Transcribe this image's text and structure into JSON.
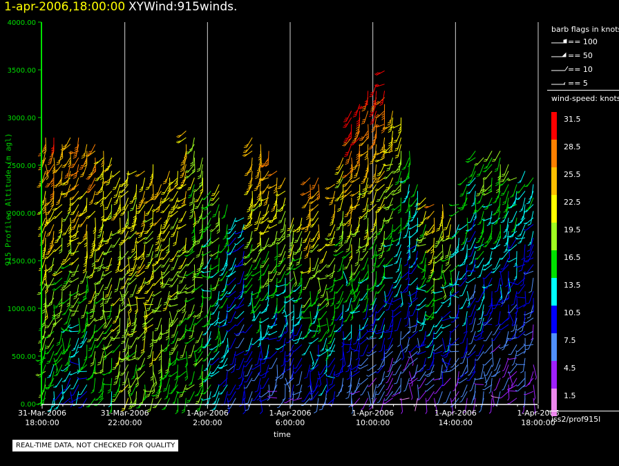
{
  "header": {
    "time": "1-apr-2006,18:00:00",
    "name": "XYWind:915winds."
  },
  "chart_data": {
    "type": "scatter",
    "title": "XYWind:915winds.",
    "xlabel": "time",
    "ylabel": "915 Profiler Altitude (m agl)",
    "ylim": [
      0,
      4000
    ],
    "yticks": [
      "0.00",
      "500.00",
      "1000.00",
      "1500.00",
      "2000.00",
      "2500.00",
      "3000.00",
      "3500.00",
      "4000.00"
    ],
    "xticks": [
      {
        "date": "31-Mar-2006",
        "time": "18:00:00"
      },
      {
        "date": "31-Mar-2006",
        "time": "22:00:00"
      },
      {
        "date": "1-Apr-2006",
        "time": "2:00:00"
      },
      {
        "date": "1-Apr-2006",
        "time": "6:00:00"
      },
      {
        "date": "1-Apr-2006",
        "time": "10:00:00"
      },
      {
        "date": "1-Apr-2006",
        "time": "14:00:00"
      },
      {
        "date": "1-Apr-2006",
        "time": "18:00:00"
      }
    ],
    "xlim_hours": [
      0,
      24
    ],
    "grid": "vertical lines at each time tick",
    "series_note": "Wind barbs per profiler range gate, colored by speed",
    "profiles": [
      {
        "t": 0.2,
        "top": 2800,
        "dir": 200,
        "spd_low": 16,
        "spd_high": 26
      },
      {
        "t": 0.6,
        "top": 2900,
        "dir": 205,
        "spd_low": 14,
        "spd_high": 30
      },
      {
        "t": 1.0,
        "top": 2850,
        "dir": 210,
        "spd_low": 12,
        "spd_high": 28
      },
      {
        "t": 1.4,
        "top": 2800,
        "dir": 215,
        "spd_low": 12,
        "spd_high": 27
      },
      {
        "t": 1.8,
        "top": 2800,
        "dir": 220,
        "spd_low": 10,
        "spd_high": 30
      },
      {
        "t": 2.2,
        "top": 2750,
        "dir": 215,
        "spd_low": 12,
        "spd_high": 28
      },
      {
        "t": 2.6,
        "top": 2750,
        "dir": 210,
        "spd_low": 14,
        "spd_high": 28
      },
      {
        "t": 3.0,
        "top": 2700,
        "dir": 215,
        "spd_low": 16,
        "spd_high": 25
      },
      {
        "t": 3.4,
        "top": 2600,
        "dir": 220,
        "spd_low": 16,
        "spd_high": 24
      },
      {
        "t": 3.8,
        "top": 2550,
        "dir": 215,
        "spd_low": 18,
        "spd_high": 24
      },
      {
        "t": 4.2,
        "top": 2500,
        "dir": 210,
        "spd_low": 19,
        "spd_high": 23
      },
      {
        "t": 4.6,
        "top": 2500,
        "dir": 215,
        "spd_low": 18,
        "spd_high": 23
      },
      {
        "t": 5.0,
        "top": 2500,
        "dir": 220,
        "spd_low": 18,
        "spd_high": 25
      },
      {
        "t": 5.4,
        "top": 2550,
        "dir": 215,
        "spd_low": 19,
        "spd_high": 24
      },
      {
        "t": 5.8,
        "top": 2500,
        "dir": 210,
        "spd_low": 18,
        "spd_high": 24
      },
      {
        "t": 6.2,
        "top": 2450,
        "dir": 215,
        "spd_low": 17,
        "spd_high": 23
      },
      {
        "t": 6.6,
        "top": 2450,
        "dir": 220,
        "spd_low": 17,
        "spd_high": 23
      },
      {
        "t": 7.0,
        "top": 2900,
        "dir": 215,
        "spd_low": 16,
        "spd_high": 26
      },
      {
        "t": 7.4,
        "top": 2800,
        "dir": 210,
        "spd_low": 17,
        "spd_high": 20
      },
      {
        "t": 7.8,
        "top": 2600,
        "dir": 215,
        "spd_low": 16,
        "spd_high": 20
      },
      {
        "t": 8.2,
        "top": 2300,
        "dir": 220,
        "spd_low": 14,
        "spd_high": 17
      },
      {
        "t": 8.6,
        "top": 2300,
        "dir": 215,
        "spd_low": 12,
        "spd_high": 20
      },
      {
        "t": 9.0,
        "top": 2100,
        "dir": 210,
        "spd_low": 11,
        "spd_high": 16
      },
      {
        "t": 9.4,
        "top": 2000,
        "dir": 220,
        "spd_low": 10,
        "spd_high": 14
      },
      {
        "t": 9.8,
        "top": 2000,
        "dir": 225,
        "spd_low": 9,
        "spd_high": 12
      },
      {
        "t": 10.2,
        "top": 2850,
        "dir": 215,
        "spd_low": 8,
        "spd_high": 27
      },
      {
        "t": 10.6,
        "top": 2750,
        "dir": 210,
        "spd_low": 8,
        "spd_high": 26
      },
      {
        "t": 11.0,
        "top": 2700,
        "dir": 220,
        "spd_low": 7,
        "spd_high": 28
      },
      {
        "t": 11.4,
        "top": 2500,
        "dir": 215,
        "spd_low": 6,
        "spd_high": 26
      },
      {
        "t": 11.8,
        "top": 2400,
        "dir": 210,
        "spd_low": 6,
        "spd_high": 24
      },
      {
        "t": 12.2,
        "top": 2000,
        "dir": 220,
        "spd_low": 6,
        "spd_high": 22
      },
      {
        "t": 12.6,
        "top": 2000,
        "dir": 225,
        "spd_low": 6,
        "spd_high": 22
      },
      {
        "t": 13.0,
        "top": 2400,
        "dir": 215,
        "spd_low": 8,
        "spd_high": 29
      },
      {
        "t": 13.4,
        "top": 2400,
        "dir": 210,
        "spd_low": 8,
        "spd_high": 27
      },
      {
        "t": 13.8,
        "top": 1700,
        "dir": 220,
        "spd_low": 9,
        "spd_high": 23
      },
      {
        "t": 14.2,
        "top": 2300,
        "dir": 225,
        "spd_low": 8,
        "spd_high": 26
      },
      {
        "t": 14.6,
        "top": 2600,
        "dir": 215,
        "spd_low": 7,
        "spd_high": 24
      },
      {
        "t": 15.0,
        "top": 3100,
        "dir": 210,
        "spd_low": 6,
        "spd_high": 32
      },
      {
        "t": 15.4,
        "top": 3200,
        "dir": 220,
        "spd_low": 5,
        "spd_high": 32
      },
      {
        "t": 15.8,
        "top": 3300,
        "dir": 215,
        "spd_low": 5,
        "spd_high": 31
      },
      {
        "t": 16.2,
        "top": 3400,
        "dir": 210,
        "spd_low": 4,
        "spd_high": 32
      },
      {
        "t": 16.6,
        "top": 3500,
        "dir": 220,
        "spd_low": 5,
        "spd_high": 32
      },
      {
        "t": 17.0,
        "top": 3100,
        "dir": 225,
        "spd_low": 4,
        "spd_high": 25
      },
      {
        "t": 17.4,
        "top": 3000,
        "dir": 215,
        "spd_low": 5,
        "spd_high": 22
      },
      {
        "t": 17.8,
        "top": 2700,
        "dir": 210,
        "spd_low": 4,
        "spd_high": 18
      },
      {
        "t": 18.2,
        "top": 2400,
        "dir": 220,
        "spd_low": 4,
        "spd_high": 17
      },
      {
        "t": 18.6,
        "top": 2200,
        "dir": 225,
        "spd_low": 5,
        "spd_high": 22
      },
      {
        "t": 19.0,
        "top": 2200,
        "dir": 215,
        "spd_low": 5,
        "spd_high": 27
      },
      {
        "t": 19.4,
        "top": 2100,
        "dir": 210,
        "spd_low": 4,
        "spd_high": 25
      },
      {
        "t": 19.8,
        "top": 2000,
        "dir": 220,
        "spd_low": 5,
        "spd_high": 22
      },
      {
        "t": 20.2,
        "top": 2100,
        "dir": 225,
        "spd_low": 5,
        "spd_high": 17
      },
      {
        "t": 20.6,
        "top": 2400,
        "dir": 215,
        "spd_low": 6,
        "spd_high": 18
      },
      {
        "t": 21.0,
        "top": 2700,
        "dir": 210,
        "spd_low": 6,
        "spd_high": 16
      },
      {
        "t": 21.4,
        "top": 2600,
        "dir": 220,
        "spd_low": 5,
        "spd_high": 20
      },
      {
        "t": 21.8,
        "top": 2650,
        "dir": 225,
        "spd_low": 5,
        "spd_high": 19
      },
      {
        "t": 22.2,
        "top": 2700,
        "dir": 215,
        "spd_low": 4,
        "spd_high": 20
      },
      {
        "t": 22.6,
        "top": 2600,
        "dir": 210,
        "spd_low": 4,
        "spd_high": 18
      },
      {
        "t": 23.0,
        "top": 2500,
        "dir": 220,
        "spd_low": 5,
        "spd_high": 17
      },
      {
        "t": 23.4,
        "top": 2500,
        "dir": 225,
        "spd_low": 5,
        "spd_high": 16
      },
      {
        "t": 23.8,
        "top": 2400,
        "dir": 215,
        "spd_low": 4,
        "spd_high": 15
      }
    ]
  },
  "legend": {
    "barb_title": "barb flags in knots",
    "barbs": [
      "== 100",
      "== 50",
      "== 10",
      "== 5"
    ],
    "speed_title": "wind-speed: knots",
    "scale": [
      {
        "label": "31.5",
        "color": "#ff0000"
      },
      {
        "label": "28.5",
        "color": "#ff8000"
      },
      {
        "label": "25.5",
        "color": "#ffc000"
      },
      {
        "label": "22.5",
        "color": "#ffff00"
      },
      {
        "label": "19.5",
        "color": "#a0ff20"
      },
      {
        "label": "16.5",
        "color": "#00e000"
      },
      {
        "label": "13.5",
        "color": "#00ffff"
      },
      {
        "label": "10.5",
        "color": "#0000ff"
      },
      {
        "label": "7.5",
        "color": "#5090ff"
      },
      {
        "label": "4.5",
        "color": "#a020ff"
      },
      {
        "label": "1.5",
        "color": "#ee88ee"
      }
    ]
  },
  "footer": {
    "station": "iss2/prof915l",
    "quality_note": "REAL-TIME DATA, NOT CHECKED FOR QUALITY"
  }
}
